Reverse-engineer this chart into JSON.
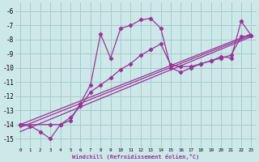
{
  "title": "",
  "xlabel": "Windchill (Refroidissement éolien,°C)",
  "bg_color": "#cde8e8",
  "grid_color": "#a8cccc",
  "line_color": "#993399",
  "xlim": [
    -0.5,
    23.5
  ],
  "ylim": [
    -15.6,
    -5.4
  ],
  "yticks": [
    -15,
    -14,
    -13,
    -12,
    -11,
    -10,
    -9,
    -8,
    -7,
    -6
  ],
  "xticks": [
    0,
    1,
    2,
    3,
    4,
    5,
    6,
    7,
    8,
    9,
    10,
    11,
    12,
    13,
    14,
    15,
    16,
    17,
    18,
    19,
    20,
    21,
    22,
    23
  ],
  "curve1_x": [
    0,
    1,
    2,
    3,
    4,
    5,
    6,
    7,
    8,
    9,
    10,
    11,
    12,
    13,
    14,
    15,
    16,
    17,
    18,
    19,
    20,
    21,
    22,
    23
  ],
  "curve1_y": [
    -14.0,
    -14.1,
    -14.5,
    -15.0,
    -14.0,
    -13.7,
    -12.5,
    -11.2,
    -7.6,
    -9.3,
    -7.2,
    -7.0,
    -6.6,
    -6.5,
    -7.2,
    -10.0,
    -10.3,
    -10.0,
    -9.7,
    -9.5,
    -9.2,
    -9.3,
    -6.7,
    -7.7
  ],
  "curve2_x": [
    0,
    3,
    4,
    5,
    6,
    7,
    8,
    9,
    10,
    11,
    12,
    13,
    14,
    15,
    16,
    17,
    18,
    19,
    20,
    21,
    22,
    23
  ],
  "curve2_y": [
    -14.0,
    -14.0,
    -14.0,
    -13.5,
    -12.7,
    -11.7,
    -11.2,
    -10.7,
    -10.1,
    -9.7,
    -9.1,
    -8.7,
    -8.3,
    -9.8,
    -9.9,
    -9.9,
    -9.7,
    -9.5,
    -9.3,
    -9.1,
    -7.8,
    -7.7
  ],
  "curve3_x": [
    0,
    23
  ],
  "curve3_y": [
    -14.0,
    -7.6
  ],
  "curve4_x": [
    0,
    23
  ],
  "curve4_y": [
    -14.5,
    -7.8
  ],
  "curve5_x": [
    0,
    23
  ],
  "curve5_y": [
    -14.2,
    -7.7
  ]
}
